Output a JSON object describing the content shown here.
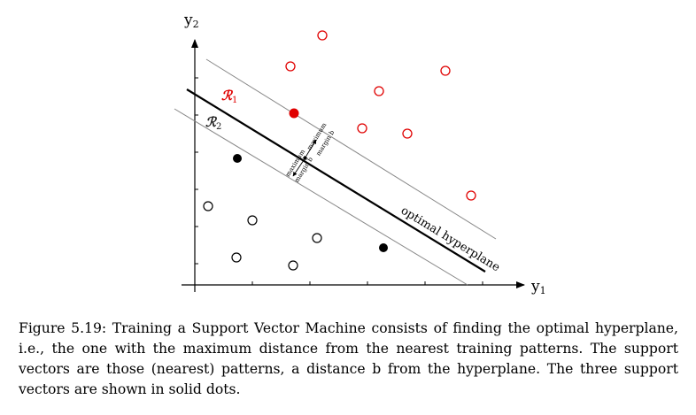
{
  "axes": {
    "x_label": "y",
    "x_sub": "1",
    "y_label": "y",
    "y_sub": "2"
  },
  "regions": [
    {
      "label": "ℛ",
      "sub": "1",
      "color": "#e00000"
    },
    {
      "label": "ℛ",
      "sub": "2",
      "color": "#222222"
    }
  ],
  "hyperplane_label": "optimal hyperplane",
  "margin_labels": {
    "upper": [
      "maximum",
      "margin b"
    ],
    "lower": [
      "maximum",
      "margin b"
    ]
  },
  "colors": {
    "class_1": "#e00000",
    "class_2": "#000000",
    "margin_lines": "#888888"
  },
  "caption": {
    "text": "Figure 5.19: Training a Support Vector Machine consists of finding the optimal hyperplane, i.e., the one with the maximum distance from the nearest training patterns. The support vectors are those (nearest) patterns, a distance b from the hyperplane. The three support vectors are shown in solid dots."
  }
}
